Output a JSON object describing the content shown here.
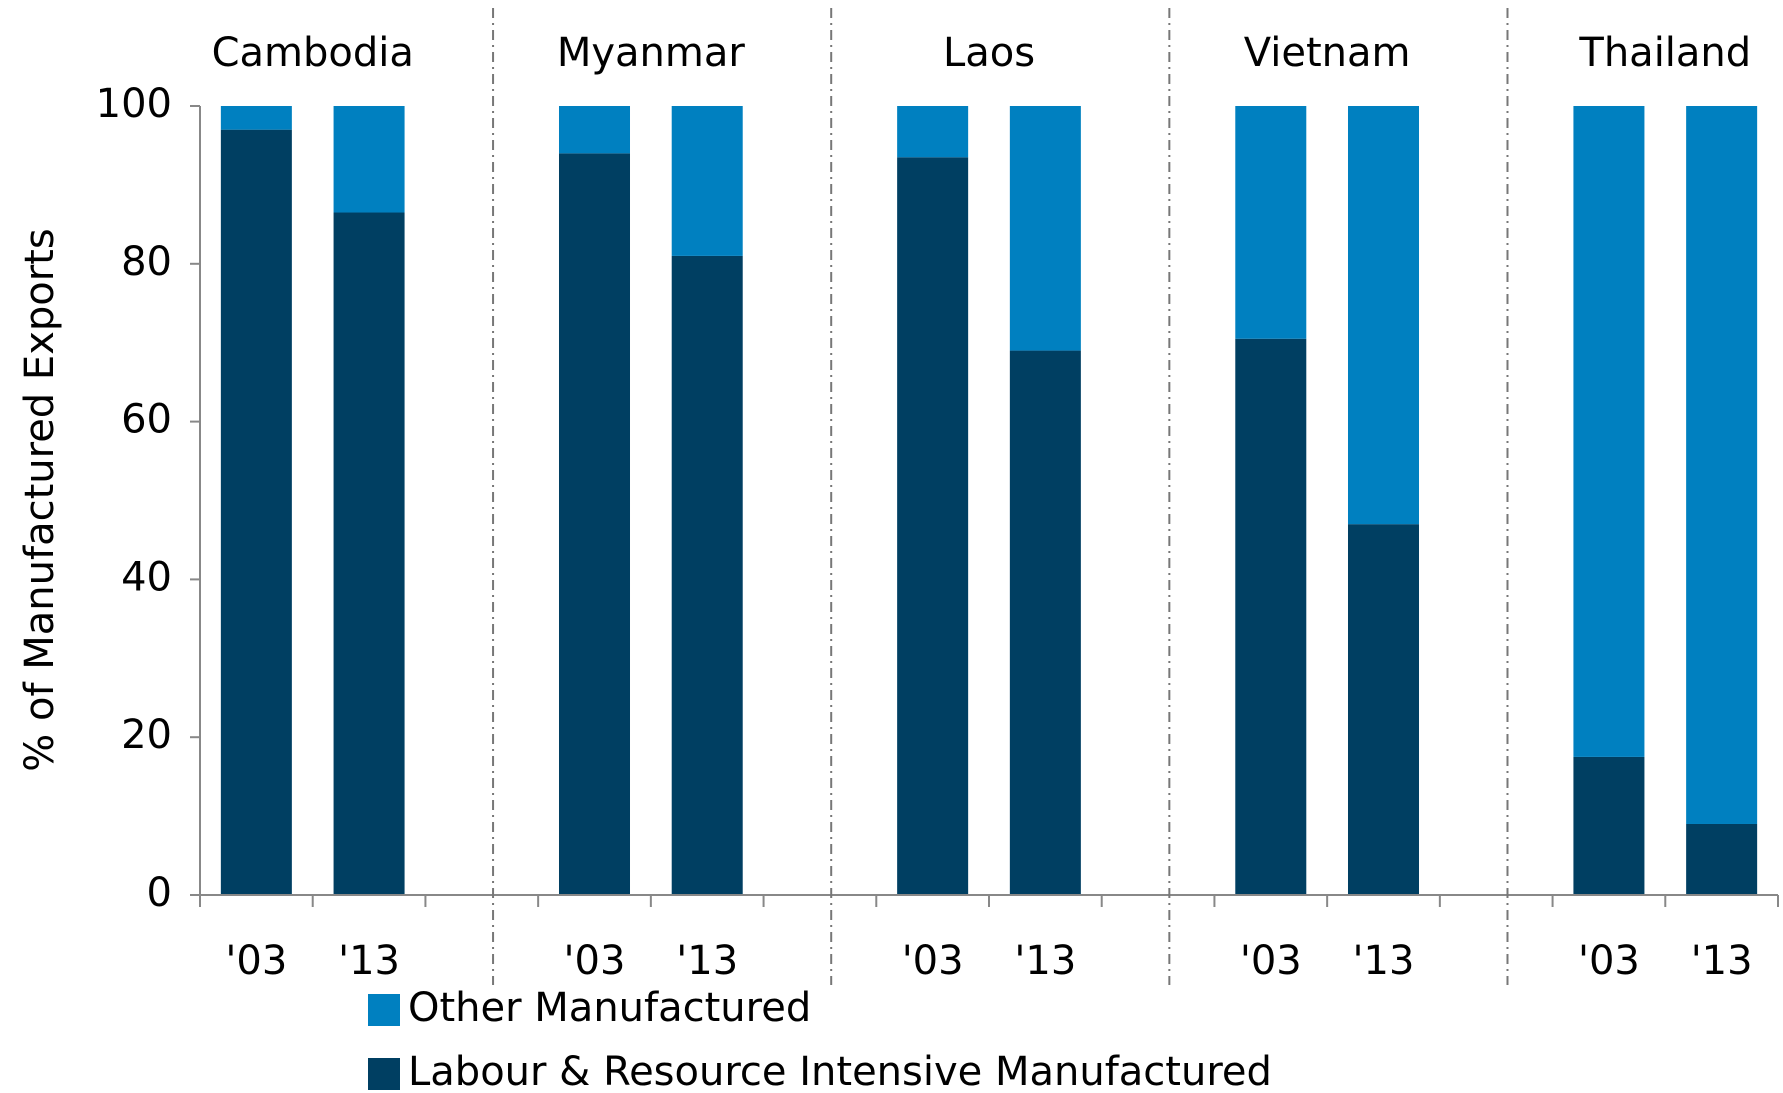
{
  "chart_data": {
    "type": "stacked-bar",
    "y_label": "% of Manufactured Exports",
    "groups": [
      "Cambodia",
      "Myanmar",
      "Laos",
      "Vietnam",
      "Thailand"
    ],
    "categories": [
      "'03",
      "'13",
      null,
      "'03",
      "'13",
      null,
      "'03",
      "'13",
      null,
      "'03",
      "'13",
      null,
      "'03",
      "'13"
    ],
    "series": [
      {
        "name": "Labour & Resource Intensive Manufactured",
        "color": "#003f62",
        "values": [
          97,
          86.5,
          null,
          94,
          81,
          null,
          93.5,
          69,
          null,
          70.5,
          47,
          null,
          17.5,
          9
        ]
      },
      {
        "name": "Other Manufactured",
        "color": "#0080c0",
        "values": [
          3,
          13.5,
          null,
          6,
          19,
          null,
          6.5,
          31,
          null,
          29.5,
          53,
          null,
          82.5,
          91
        ]
      }
    ],
    "ylim": [
      0,
      100
    ],
    "yticks": [
      0,
      20,
      40,
      60,
      80,
      100
    ]
  }
}
